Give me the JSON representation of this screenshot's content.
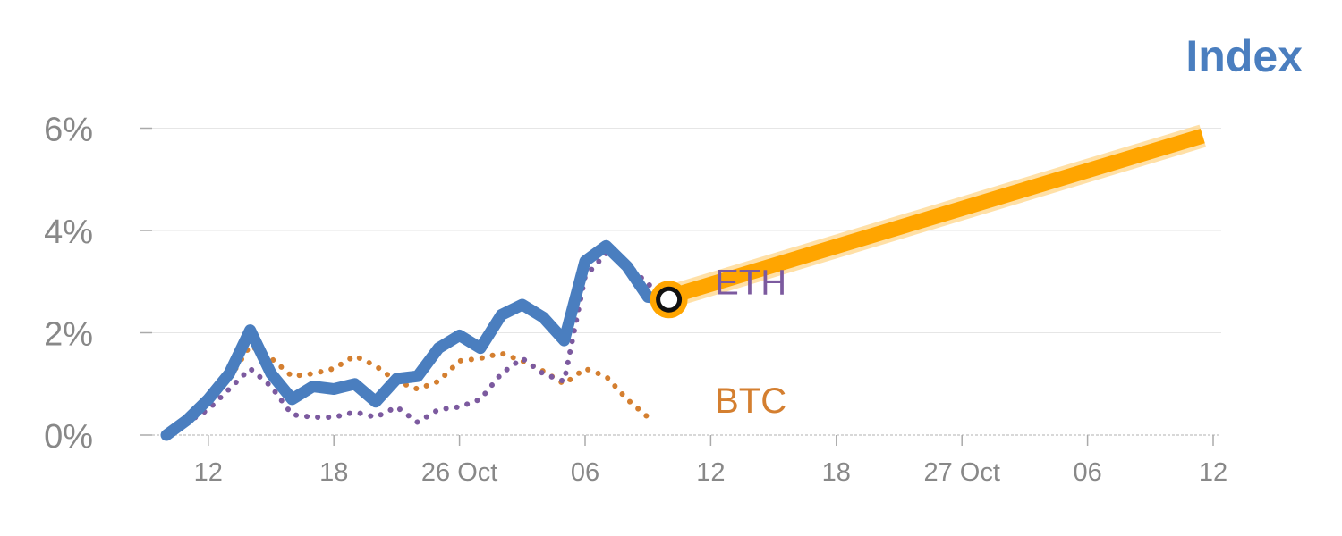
{
  "title": "Index",
  "chart_data": {
    "type": "line",
    "title": "Index",
    "xlabel": "",
    "ylabel": "",
    "ylim": [
      0,
      6.4
    ],
    "y_ticks": [
      {
        "value": 0,
        "label": "0%"
      },
      {
        "value": 2,
        "label": "2%"
      },
      {
        "value": 4,
        "label": "4%"
      },
      {
        "value": 6,
        "label": "6%"
      }
    ],
    "x_ticks": [
      {
        "x": 2,
        "label": "12"
      },
      {
        "x": 8,
        "label": "18"
      },
      {
        "x": 14,
        "label": "26 Oct"
      },
      {
        "x": 20,
        "label": "06"
      },
      {
        "x": 26,
        "label": "12"
      },
      {
        "x": 32,
        "label": "18"
      },
      {
        "x": 38,
        "label": "27 Oct"
      },
      {
        "x": 44,
        "label": "06"
      },
      {
        "x": 50,
        "label": "12"
      }
    ],
    "grid": true,
    "colors": {
      "index": "#4a7ebf",
      "eth": "#7c5a9f",
      "btc": "#d47f30",
      "forecast": "#ffa500",
      "grid": "#e6e6e6",
      "axis": "#cccccc",
      "tick_text": "#888888"
    },
    "series": [
      {
        "key": "index",
        "style": "solid",
        "x": [
          0,
          1,
          2,
          3,
          4,
          5,
          6,
          7,
          8,
          9,
          10,
          11,
          12,
          13,
          14,
          15,
          16,
          17,
          18,
          19,
          20,
          21,
          22,
          23,
          24
        ],
        "values": [
          0.0,
          0.3,
          0.7,
          1.2,
          2.05,
          1.2,
          0.7,
          0.95,
          0.9,
          1.0,
          0.65,
          1.1,
          1.15,
          1.7,
          1.95,
          1.7,
          2.35,
          2.55,
          2.3,
          1.85,
          3.4,
          3.7,
          3.3,
          2.7,
          2.65
        ]
      },
      {
        "key": "eth",
        "name": "ETH",
        "style": "dotted",
        "x": [
          0,
          1,
          2,
          3,
          4,
          5,
          6,
          7,
          8,
          9,
          10,
          11,
          12,
          13,
          14,
          15,
          16,
          17,
          18,
          19,
          20,
          21,
          22,
          23,
          24
        ],
        "values": [
          0.05,
          0.25,
          0.5,
          0.9,
          1.3,
          0.95,
          0.4,
          0.35,
          0.35,
          0.45,
          0.35,
          0.55,
          0.25,
          0.5,
          0.55,
          0.7,
          1.2,
          1.5,
          1.2,
          1.05,
          3.1,
          3.55,
          3.35,
          2.95,
          2.7
        ]
      },
      {
        "key": "btc",
        "name": "BTC",
        "style": "dotted",
        "x": [
          0,
          1,
          2,
          3,
          4,
          5,
          6,
          7,
          8,
          9,
          10,
          11,
          12,
          13,
          14,
          15,
          16,
          17,
          18,
          19,
          20,
          21,
          22,
          23
        ],
        "values": [
          0.0,
          0.35,
          0.6,
          1.1,
          1.75,
          1.5,
          1.15,
          1.2,
          1.3,
          1.55,
          1.35,
          1.05,
          0.9,
          1.05,
          1.45,
          1.5,
          1.6,
          1.45,
          1.25,
          1.0,
          1.3,
          1.15,
          0.7,
          0.35
        ]
      },
      {
        "key": "forecast",
        "style": "thick",
        "x": [
          24,
          49.5
        ],
        "values": [
          2.7,
          5.85
        ]
      }
    ],
    "marker": {
      "x": 24,
      "y": 2.65
    },
    "labels": [
      {
        "series": "eth",
        "text": "ETH",
        "x": 26.2,
        "y": 3.0
      },
      {
        "series": "btc",
        "text": "BTC",
        "x": 26.2,
        "y": 0.68
      }
    ]
  }
}
